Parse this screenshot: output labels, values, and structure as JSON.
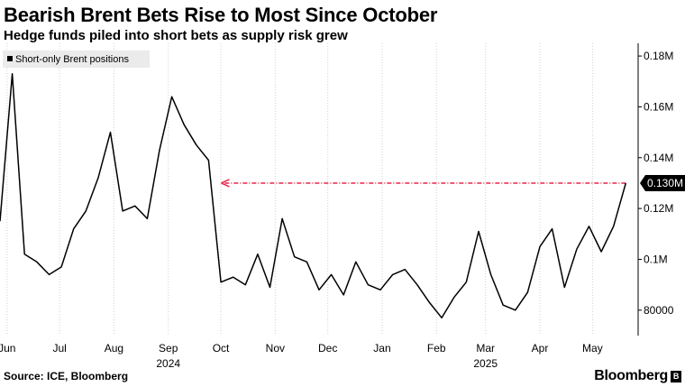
{
  "header": {
    "title": "Bearish Brent Bets Rise to Most Since October",
    "subtitle": "Hedge funds piled into short bets as supply risk grew"
  },
  "footer": {
    "source": "Source: ICE, Bloomberg",
    "brand": "Bloomberg"
  },
  "colors": {
    "line": "#000000",
    "arrow": "#e8264a",
    "grid": "#d0d0d0"
  },
  "chart_data": {
    "type": "line",
    "title": "Bearish Brent Bets Rise to Most Since October",
    "subtitle": "Hedge funds piled into short bets as supply risk grew",
    "series": [
      {
        "name": "Short-only Brent positions",
        "x": [
          "2024-05-28",
          "2024-06-04",
          "2024-06-11",
          "2024-06-18",
          "2024-06-25",
          "2024-07-02",
          "2024-07-09",
          "2024-07-16",
          "2024-07-23",
          "2024-07-30",
          "2024-08-06",
          "2024-08-13",
          "2024-08-20",
          "2024-08-27",
          "2024-09-03",
          "2024-09-10",
          "2024-09-17",
          "2024-09-24",
          "2024-10-01",
          "2024-10-08",
          "2024-10-15",
          "2024-10-22",
          "2024-10-29",
          "2024-11-05",
          "2024-11-12",
          "2024-11-19",
          "2024-11-26",
          "2024-12-03",
          "2024-12-10",
          "2024-12-17",
          "2024-12-24",
          "2024-12-31",
          "2025-01-07",
          "2025-01-14",
          "2025-01-21",
          "2025-01-28",
          "2025-02-04",
          "2025-02-11",
          "2025-02-18",
          "2025-02-25",
          "2025-03-04",
          "2025-03-11",
          "2025-03-18",
          "2025-03-25",
          "2025-04-01",
          "2025-04-08",
          "2025-04-15",
          "2025-04-22",
          "2025-04-29",
          "2025-05-06",
          "2025-05-13",
          "2025-05-20"
        ],
        "values": [
          115000,
          173000,
          102000,
          99000,
          94000,
          97000,
          112000,
          119000,
          132000,
          150000,
          119000,
          121000,
          116000,
          143000,
          164000,
          153000,
          145000,
          139000,
          91000,
          93000,
          90000,
          102000,
          89000,
          116000,
          101000,
          99000,
          88000,
          94000,
          86000,
          99000,
          90000,
          88000,
          94000,
          96000,
          90000,
          83000,
          77000,
          85000,
          91000,
          111000,
          94000,
          82000,
          80000,
          87000,
          105000,
          112000,
          89000,
          104000,
          113000,
          103000,
          113000,
          130000
        ]
      }
    ],
    "last_value_label": "0.130M",
    "x_tick_labels": [
      "Jun",
      "Jul",
      "Aug",
      "Sep",
      "Oct",
      "Nov",
      "Dec",
      "Jan",
      "Feb",
      "Mar",
      "Apr",
      "May"
    ],
    "x_tick_dates": [
      "2024-06-01",
      "2024-07-01",
      "2024-08-01",
      "2024-09-01",
      "2024-10-01",
      "2024-11-01",
      "2024-12-01",
      "2025-01-01",
      "2025-02-01",
      "2025-03-01",
      "2025-04-01",
      "2025-05-01"
    ],
    "year_labels": [
      {
        "label": "2024",
        "date": "2024-09-01"
      },
      {
        "label": "2025",
        "date": "2025-03-01"
      }
    ],
    "y_ticks": [
      80000,
      100000,
      120000,
      140000,
      160000,
      180000
    ],
    "y_tick_labels": [
      "80000",
      "0.1M",
      "0.12M",
      "0.14M",
      "0.16M",
      "0.18M"
    ],
    "ylim": [
      70000,
      185000
    ],
    "xlim": [
      "2024-05-28",
      "2025-05-26"
    ],
    "y_axis_position": "right",
    "grid": "vertical dotted",
    "legend_position": "top-left",
    "annotation": {
      "type": "dashed-arrow",
      "value": 130000,
      "from": "2025-05-20",
      "to": "2024-09-24",
      "color": "#e8264a"
    }
  }
}
